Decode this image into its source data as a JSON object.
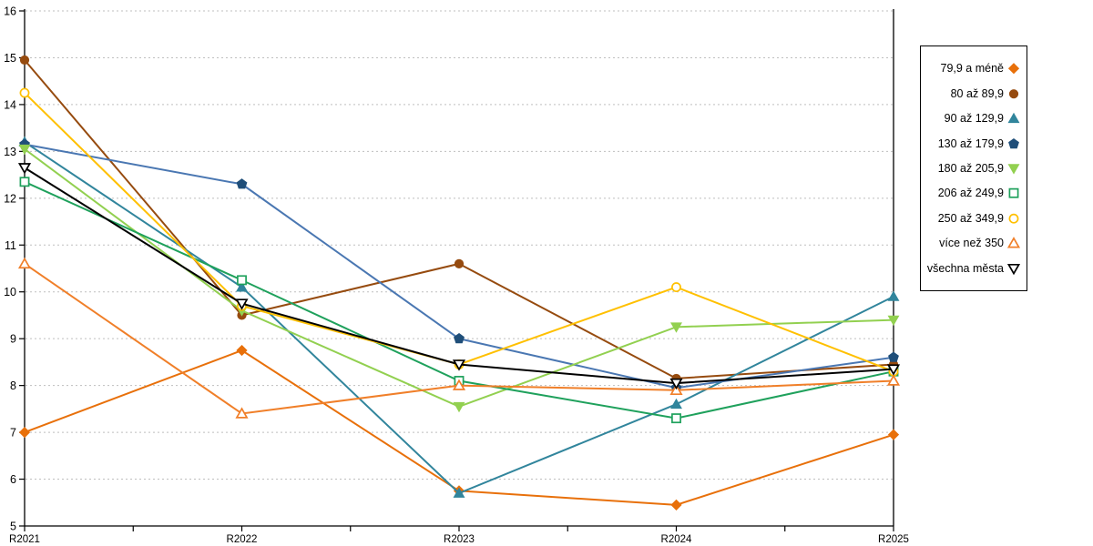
{
  "chart_data": {
    "type": "line",
    "title": "",
    "xlabel": "",
    "ylabel": "",
    "categories": [
      "R2021",
      "R2022",
      "R2023",
      "R2024",
      "R2025"
    ],
    "ylim": [
      5,
      16
    ],
    "yticks": [
      5,
      6,
      7,
      8,
      9,
      10,
      11,
      12,
      13,
      14,
      15,
      16
    ],
    "grid": "horizontal-dashed",
    "grid_color": "#BFBFBF",
    "axis_color": "#000000",
    "legend_position": "right",
    "series": [
      {
        "name": "79,9 a méně",
        "marker": "diamond",
        "filled": true,
        "color": "#E8700A",
        "values": [
          7.0,
          8.75,
          5.75,
          5.45,
          6.95
        ]
      },
      {
        "name": "80 až 89,9",
        "marker": "circle",
        "filled": true,
        "color": "#964B0F",
        "values": [
          14.95,
          9.5,
          10.6,
          8.15,
          8.45
        ]
      },
      {
        "name": "90 až 129,9",
        "marker": "triangle-up",
        "filled": true,
        "color": "#31859C",
        "values": [
          13.2,
          10.1,
          5.7,
          7.6,
          9.9
        ]
      },
      {
        "name": "130 až 179,9",
        "marker": "pentagon",
        "filled": true,
        "color": "#1F4E79",
        "line_color": "#4A77B2",
        "values": [
          13.15,
          12.3,
          9.0,
          7.95,
          8.6
        ]
      },
      {
        "name": "180 až 205,9",
        "marker": "triangle-down",
        "filled": true,
        "color": "#92D050",
        "values": [
          13.05,
          9.6,
          7.55,
          9.25,
          9.4
        ]
      },
      {
        "name": "206 až 249,9",
        "marker": "square",
        "filled": false,
        "color": "#1FA15C",
        "values": [
          12.35,
          10.25,
          8.1,
          7.3,
          8.3
        ]
      },
      {
        "name": "250 až 349,9",
        "marker": "circle",
        "filled": false,
        "color": "#FFC000",
        "values": [
          14.25,
          9.7,
          8.45,
          10.1,
          8.3
        ]
      },
      {
        "name": "více než 350",
        "marker": "triangle-up",
        "filled": false,
        "color": "#F07F29",
        "values": [
          10.6,
          7.4,
          8.0,
          7.9,
          8.1
        ]
      },
      {
        "name": "všechna města",
        "marker": "triangle-down",
        "filled": false,
        "color": "#000000",
        "values": [
          12.65,
          9.75,
          8.45,
          8.05,
          8.35
        ]
      }
    ]
  }
}
